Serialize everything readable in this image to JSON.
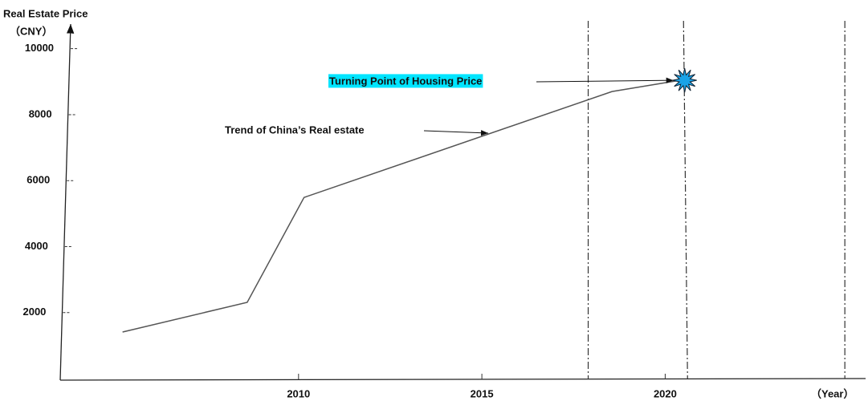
{
  "chart_data": {
    "type": "line",
    "y_label": "Real Estate Price",
    "y_unit": "（CNY）",
    "x_label": "（Year）",
    "x": [
      2005.2,
      2008.6,
      2010.15,
      2018.55,
      2020.4
    ],
    "series": [
      {
        "name": "Trend of China’s Real estate",
        "color": "#555555",
        "values": [
          1410,
          2310,
          5490,
          8700,
          9040
        ]
      }
    ],
    "xlim": [
      2003.5,
      2025.4
    ],
    "xticks": [
      2010,
      2015,
      2020
    ],
    "ylim": [
      0,
      10600
    ],
    "yticks": [
      2000,
      4000,
      6000,
      8000,
      10000
    ],
    "reference_lines": [
      2017.9,
      2020.5,
      2024.9
    ],
    "turning_point": "Turning Point of Housing Price",
    "highlight_color": "#00e5ff",
    "star_color": "#1aa3e8"
  }
}
